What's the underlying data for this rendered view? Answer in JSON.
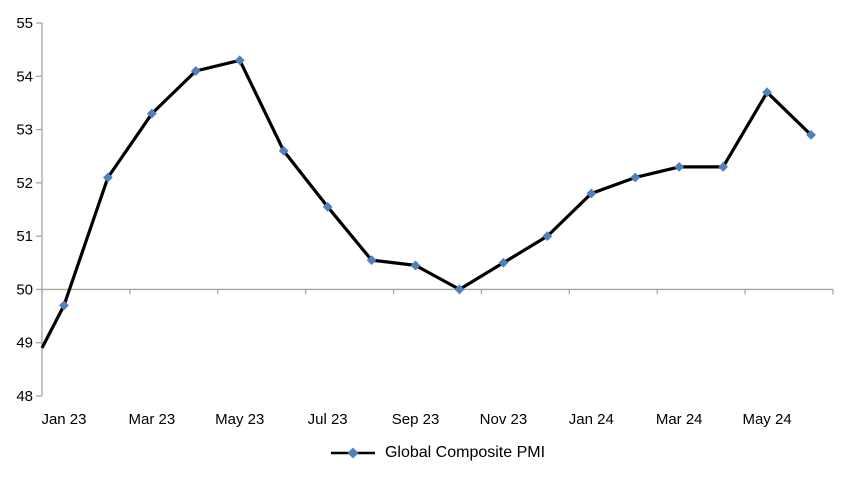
{
  "chart_data": {
    "type": "line",
    "title": "",
    "series_name": "Global Composite PMI",
    "categories": [
      "Jan 23",
      "Feb 23",
      "Mar 23",
      "Apr 23",
      "May 23",
      "Jun 23",
      "Jul 23",
      "Aug 23",
      "Sep 23",
      "Oct 23",
      "Nov 23",
      "Dec 23",
      "Jan 24",
      "Feb 24",
      "Mar 24",
      "Apr 24",
      "May 24",
      "Jun 24"
    ],
    "values": [
      49.7,
      52.1,
      53.3,
      54.1,
      54.3,
      52.6,
      51.55,
      50.55,
      50.45,
      50.0,
      50.5,
      51.0,
      51.8,
      52.1,
      52.3,
      52.3,
      53.7,
      52.9
    ],
    "edge_start_value": 48.9,
    "x_tick_labels": [
      "Jan 23",
      "Mar 23",
      "May 23",
      "Jul 23",
      "Sep 23",
      "Nov 23",
      "Jan 24",
      "Mar 24",
      "May 24"
    ],
    "x_label_every": 2,
    "y_ticks": [
      55,
      54,
      53,
      52,
      51,
      50,
      49,
      48
    ],
    "ylim": [
      48,
      55
    ],
    "x_axis_cross_at": 50,
    "grid": false,
    "marker": "diamond",
    "legend": {
      "label": "Global Composite PMI",
      "position": "bottom-center"
    },
    "colors": {
      "line": "#000000",
      "marker": "#4F81BD",
      "axis": "#A6A6A6",
      "text": "#000000",
      "background": "#FFFFFF"
    }
  }
}
